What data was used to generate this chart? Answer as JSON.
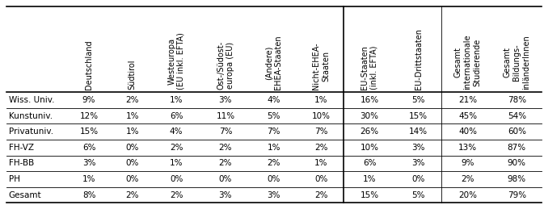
{
  "col_headers": [
    "Deutschland",
    "Südtirol",
    "Westeuropa\n(EU inkl. EFTA)",
    "Ost-/Südost-\neuropa (EU)",
    "(Andere)\nEHEA-Staaten",
    "Nicht-EHEA-\nStaaten",
    "EU-Staaten\n(inkl. EFTA)",
    "EU-Drittstaaten",
    "Gesamt\ninternationale\nStudierende",
    "Gesamt\nBildungs-\ninländerInnen"
  ],
  "row_headers": [
    "Wiss. Univ.",
    "Kunstuniv.",
    "Privatuniv.",
    "FH-VZ",
    "FH-BB",
    "PH",
    "Gesamt"
  ],
  "data": [
    [
      "9%",
      "2%",
      "1%",
      "3%",
      "4%",
      "1%",
      "16%",
      "5%",
      "21%",
      "78%"
    ],
    [
      "12%",
      "1%",
      "6%",
      "11%",
      "5%",
      "10%",
      "30%",
      "15%",
      "45%",
      "54%"
    ],
    [
      "15%",
      "1%",
      "4%",
      "7%",
      "7%",
      "7%",
      "26%",
      "14%",
      "40%",
      "60%"
    ],
    [
      "6%",
      "0%",
      "2%",
      "2%",
      "1%",
      "2%",
      "10%",
      "3%",
      "13%",
      "87%"
    ],
    [
      "3%",
      "0%",
      "1%",
      "2%",
      "2%",
      "1%",
      "6%",
      "3%",
      "9%",
      "90%"
    ],
    [
      "1%",
      "0%",
      "0%",
      "0%",
      "0%",
      "0%",
      "1%",
      "0%",
      "2%",
      "98%"
    ],
    [
      "8%",
      "2%",
      "2%",
      "3%",
      "3%",
      "2%",
      "15%",
      "5%",
      "20%",
      "79%"
    ]
  ],
  "separator_after_col": 5,
  "bg_color": "#ffffff",
  "cell_text_color": "#000000",
  "font_size": 7.5,
  "header_font_size": 7.0,
  "row_header_font_size": 7.5,
  "line_color": "#000000",
  "fig_width": 6.73,
  "fig_height": 2.54
}
